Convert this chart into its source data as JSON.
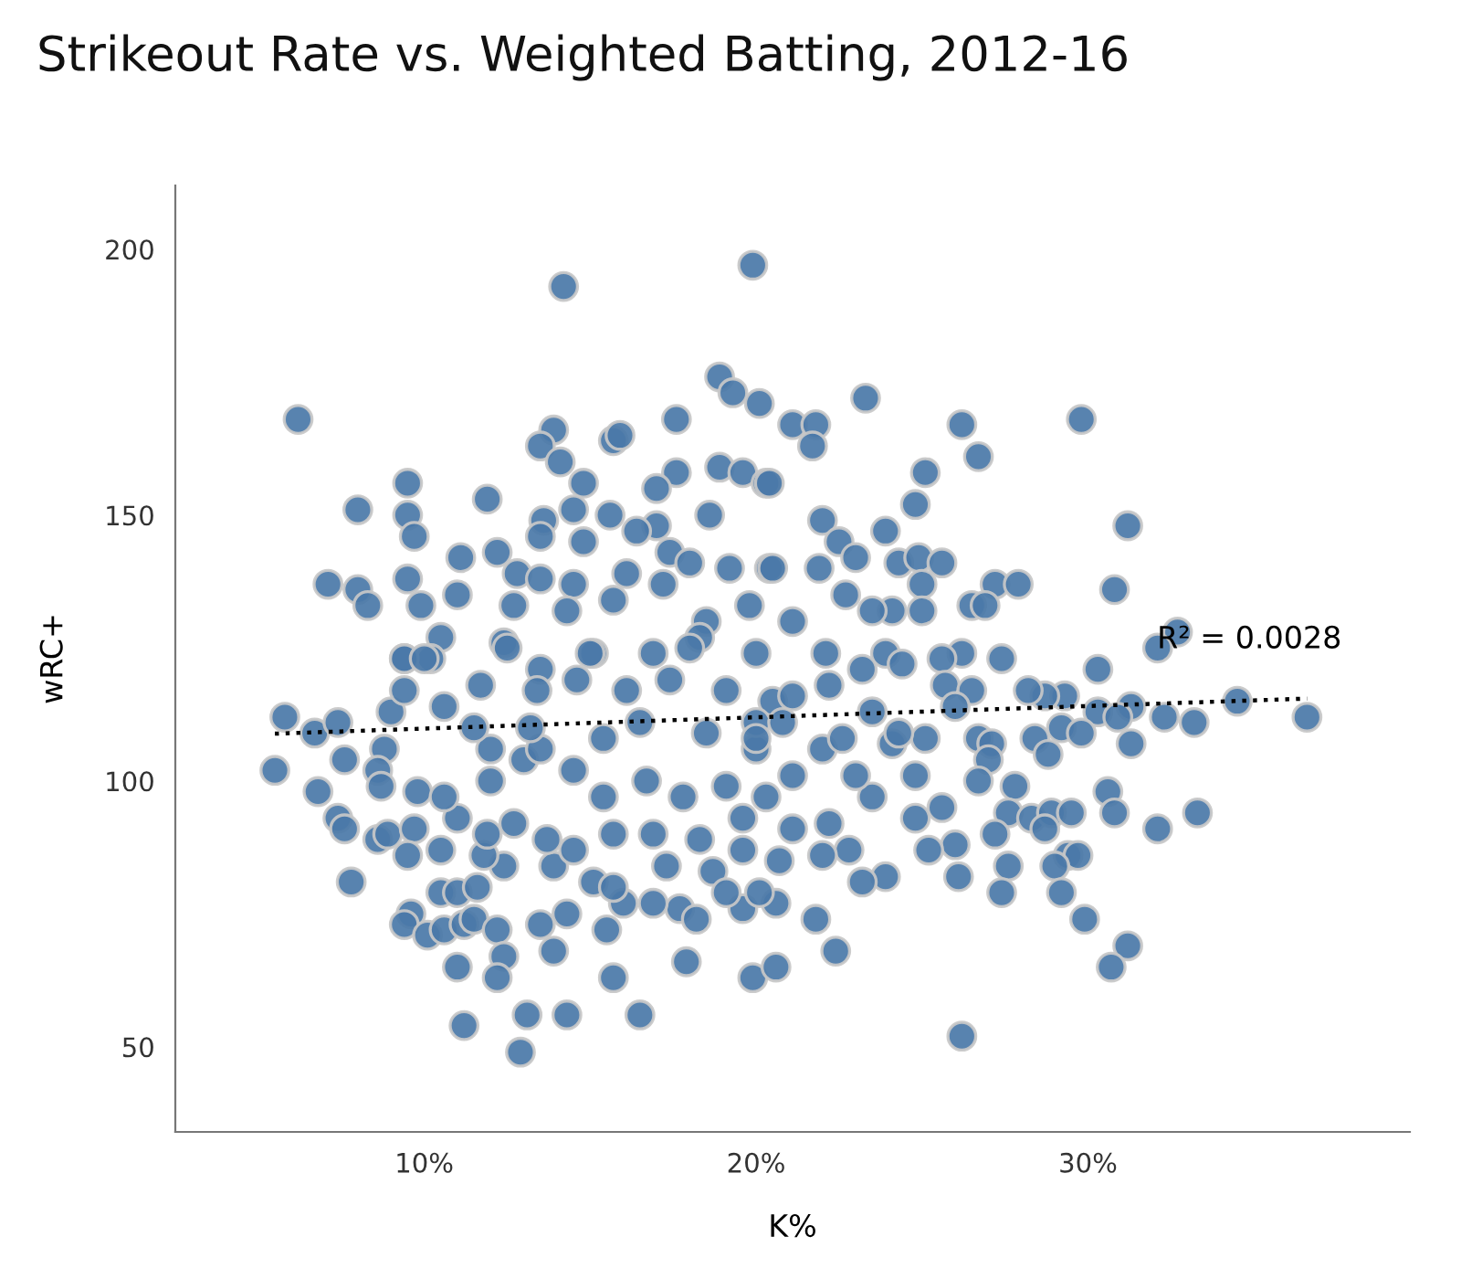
{
  "chart_data": {
    "type": "scatter",
    "title": "Strikeout Rate vs. Weighted Batting, 2012-16",
    "xlabel": "K%",
    "ylabel": "wRC+",
    "xlim": [
      2.5,
      39.7
    ],
    "ylim": [
      34,
      212
    ],
    "xticks": [
      {
        "value": 10,
        "label": "10%"
      },
      {
        "value": 20,
        "label": "20%"
      },
      {
        "value": 30,
        "label": "30%"
      }
    ],
    "yticks": [
      50,
      100,
      150,
      200
    ],
    "grid": false,
    "legend": false,
    "annotations": [
      "R² = 0.0028"
    ],
    "series": [
      {
        "color": "#4a78a8",
        "marker": "circle",
        "x": [
          6.2,
          14.2,
          19.9,
          18.9,
          19.3,
          20.1,
          17.6,
          13.9,
          13.5,
          14.1,
          15.7,
          15.9,
          9.5,
          8.0,
          9.5,
          9.7,
          11.9,
          14.8,
          17.6,
          18.9,
          19.6,
          20.3,
          17.0,
          14.5,
          15.6,
          17.0,
          13.6,
          13.5,
          14.8,
          16.4,
          18.6,
          11.1,
          12.2,
          12.8,
          7.1,
          8.0,
          8.3,
          9.5,
          9.9,
          10.5,
          11.0,
          13.5,
          14.5,
          16.1,
          17.4,
          18.0,
          19.2,
          20.4,
          12.7,
          14.3,
          15.7,
          17.2,
          18.5,
          19.8,
          12.4,
          9.4,
          10.2,
          13.5,
          15.1,
          16.9,
          18.3,
          20.0,
          23.3,
          21.1,
          21.8,
          21.7,
          26.2,
          26.7,
          29.8,
          25.1,
          24.8,
          20.4,
          22.0,
          22.5,
          23.9,
          23.0,
          24.3,
          24.9,
          25.6,
          21.9,
          20.5,
          25.0,
          27.2,
          27.9,
          31.2,
          30.8,
          26.5,
          26.9,
          25.0,
          24.1,
          23.5,
          22.7,
          32.7,
          32.1,
          30.3,
          27.4,
          26.2,
          25.6,
          22.1,
          23.9,
          21.1,
          5.5,
          5.8,
          6.7,
          7.4,
          7.6,
          6.8,
          7.4,
          7.8,
          7.6,
          8.6,
          8.9,
          8.8,
          8.6,
          8.7,
          9.0,
          9.4,
          9.4,
          9.8,
          9.7,
          9.5,
          10.5,
          9.6,
          9.4,
          10.1,
          10.6,
          11.2,
          11.5,
          10.5,
          11.0,
          11.6,
          12.2,
          12.4,
          12.2,
          11.0,
          11.2,
          12.9,
          13.1,
          14.3,
          13.9,
          13.5,
          14.3,
          15.5,
          15.7,
          16.5,
          17.9,
          19.9,
          20.6,
          17.7,
          18.2,
          19.6,
          20.6,
          18.7,
          19.1,
          17.3,
          16.9,
          16.0,
          15.1,
          15.7,
          13.9,
          14.5,
          12.4,
          11.8,
          11.0,
          11.9,
          12.7,
          13.7,
          15.7,
          16.9,
          18.3,
          19.6,
          20.7,
          12.0,
          13.0,
          14.5,
          15.4,
          16.7,
          17.8,
          19.1,
          20.3,
          10.6,
          12.0,
          13.5,
          15.4,
          18.5,
          20.0,
          10.6,
          11.7,
          13.4,
          14.6,
          16.1,
          17.4,
          19.1,
          20.5,
          10.0,
          12.5,
          15.0,
          18.0,
          11.5,
          13.2,
          16.5,
          20.0,
          36.6,
          34.5,
          33.2,
          32.3,
          31.3,
          31.3,
          30.3,
          30.9,
          29.3,
          28.7,
          28.2,
          29.2,
          29.8,
          28.4,
          28.8,
          26.7,
          27.1,
          27.0,
          26.7,
          27.8,
          30.6,
          30.8,
          32.1,
          33.3,
          27.6,
          28.3,
          28.9,
          29.5,
          28.7,
          27.2,
          29.4,
          29.7,
          29.0,
          27.6,
          27.4,
          29.2,
          29.9,
          31.2,
          30.7,
          26.2,
          26.0,
          26.1,
          25.2,
          25.6,
          24.8,
          23.9,
          23.2,
          22.8,
          21.8,
          22.4,
          20.1,
          22.0,
          21.1,
          22.2,
          23.5,
          24.8,
          24.1,
          25.1,
          23.0,
          22.0,
          21.1,
          19.6,
          25.7,
          26.5,
          26.0,
          24.4,
          23.2,
          22.2,
          21.1,
          22.6,
          24.3,
          23.5,
          20.8,
          20.0
        ],
        "values": [
          168,
          193,
          197,
          176,
          173,
          171,
          168,
          166,
          163,
          160,
          164,
          165,
          156,
          151,
          150,
          146,
          153,
          156,
          158,
          159,
          158,
          156,
          155,
          151,
          150,
          148,
          149,
          146,
          145,
          147,
          150,
          142,
          143,
          139,
          137,
          136,
          133,
          138,
          133,
          127,
          135,
          138,
          137,
          139,
          143,
          141,
          140,
          140,
          133,
          132,
          134,
          137,
          130,
          133,
          126,
          123,
          123,
          121,
          124,
          124,
          127,
          124,
          172,
          167,
          167,
          163,
          167,
          161,
          168,
          158,
          152,
          156,
          149,
          145,
          147,
          142,
          141,
          142,
          141,
          140,
          140,
          137,
          137,
          137,
          148,
          136,
          133,
          133,
          132,
          132,
          132,
          135,
          128,
          125,
          121,
          123,
          124,
          123,
          124,
          124,
          130,
          102,
          112,
          109,
          111,
          104,
          98,
          93,
          81,
          91,
          89,
          90,
          106,
          102,
          99,
          113,
          117,
          123,
          98,
          91,
          86,
          87,
          75,
          73,
          71,
          72,
          73,
          74,
          79,
          79,
          80,
          72,
          67,
          63,
          65,
          54,
          49,
          56,
          56,
          68,
          73,
          75,
          72,
          63,
          56,
          66,
          63,
          65,
          76,
          74,
          76,
          77,
          83,
          79,
          84,
          77,
          77,
          81,
          80,
          84,
          87,
          84,
          86,
          93,
          90,
          92,
          89,
          90,
          90,
          89,
          87,
          85,
          100,
          104,
          102,
          97,
          100,
          97,
          99,
          97,
          97,
          106,
          106,
          108,
          109,
          106,
          114,
          118,
          117,
          119,
          117,
          119,
          117,
          115,
          123,
          125,
          124,
          125,
          110,
          110,
          111,
          111,
          112,
          115,
          111,
          112,
          114,
          107,
          113,
          112,
          116,
          116,
          117,
          110,
          109,
          108,
          105,
          108,
          107,
          104,
          100,
          99,
          98,
          94,
          91,
          94,
          94,
          93,
          94,
          94,
          91,
          90,
          86,
          86,
          84,
          84,
          79,
          79,
          74,
          69,
          65,
          52,
          88,
          82,
          87,
          95,
          93,
          82,
          81,
          87,
          74,
          68,
          79,
          86,
          91,
          92,
          97,
          101,
          107,
          108,
          101,
          106,
          101,
          93,
          118,
          117,
          114,
          122,
          121,
          118,
          116,
          108,
          109,
          113,
          111,
          108
        ]
      },
      {
        "type": "line",
        "color": "#000000",
        "marker": "none",
        "line_style": "dotted",
        "x": [
          5.5,
          36.6
        ],
        "values": [
          108.9,
          115.5
        ]
      }
    ]
  }
}
